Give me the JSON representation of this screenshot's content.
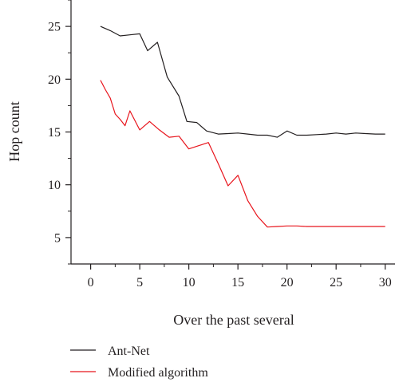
{
  "chart_data": {
    "type": "line",
    "xlabel": "Over the past several",
    "ylabel": "Hop count",
    "xlim": [
      -2,
      31
    ],
    "ylim": [
      2.5,
      27.5
    ],
    "xticks": [
      0,
      5,
      10,
      15,
      20,
      25,
      30
    ],
    "yticks": [
      5,
      10,
      15,
      20,
      25
    ],
    "grid": false,
    "legend_position": "bottom-left",
    "series": [
      {
        "name": "Ant-Net",
        "color": "#231f20",
        "x": [
          1,
          2,
          3,
          4,
          5,
          5.8,
          6.8,
          7.8,
          9,
          9.8,
          10.8,
          11.8,
          13,
          14,
          15,
          16,
          17,
          18,
          19,
          20,
          21,
          22,
          23,
          24,
          25,
          26,
          27,
          28,
          29,
          30
        ],
        "y": [
          25,
          24.6,
          24.1,
          24.2,
          24.3,
          22.7,
          23.5,
          20.2,
          18.4,
          16,
          15.9,
          15.1,
          14.8,
          14.85,
          14.9,
          14.8,
          14.7,
          14.7,
          14.5,
          15.1,
          14.7,
          14.7,
          14.75,
          14.8,
          14.9,
          14.8,
          14.9,
          14.85,
          14.8,
          14.8
        ]
      },
      {
        "name": "Modified algorithm",
        "color": "#e8141c",
        "x": [
          1,
          1.5,
          2,
          2.5,
          3,
          3.5,
          4,
          5,
          6,
          7,
          8,
          9,
          10,
          11,
          12,
          13,
          14,
          15,
          16,
          17,
          18,
          19,
          20,
          21,
          22,
          23,
          24,
          25,
          26,
          27,
          28,
          29,
          30
        ],
        "y": [
          19.9,
          19,
          18.2,
          16.7,
          16.2,
          15.6,
          17.0,
          15.2,
          16.0,
          15.2,
          14.5,
          14.6,
          13.4,
          13.7,
          14.0,
          12.0,
          9.9,
          10.9,
          8.5,
          7.0,
          6.0,
          6.05,
          6.1,
          6.1,
          6.05,
          6.05,
          6.05,
          6.05,
          6.05,
          6.05,
          6.05,
          6.05,
          6.05
        ]
      }
    ]
  }
}
